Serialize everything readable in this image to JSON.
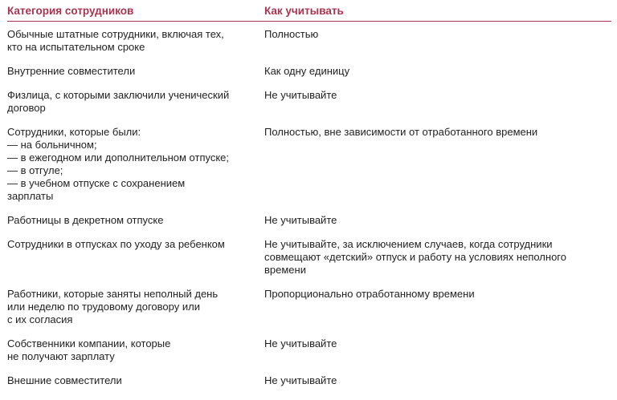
{
  "header": {
    "category": "Категория сотрудников",
    "how": "Как учитывать"
  },
  "rows": [
    {
      "category": "Обычные штатные сотрудники, включая тех,\nкто на испытательном сроке",
      "how": "Полностью"
    },
    {
      "category": "Внутренние совместители",
      "how": "Как одну единицу"
    },
    {
      "category": "Физлица, с которыми заключили ученический\nдоговор",
      "how": "Не учитывайте"
    },
    {
      "category": "Сотрудники, которые были:\n— на больничном;\n— в ежегодном или дополнительном отпуске;\n— в отгуле;\n— в учебном отпуске с сохранением\nзарплаты",
      "how": "Полностью, вне зависимости от отработанного времени"
    },
    {
      "category": "Работницы в декретном отпуске",
      "how": "Не учитывайте"
    },
    {
      "category": "Сотрудники в отпусках по уходу за ребенком",
      "how": "Не учитывайте, за исключением случаев, когда сотрудники\nсовмещают «детский» отпуск и работу на условиях неполного\nвремени"
    },
    {
      "category": "Работники, которые заняты неполный день\nили неделю по трудовому договору или\nс их согласия",
      "how": "Пропорционально отработанному времени"
    },
    {
      "category": "Собственники компании, которые\nне получают зарплату",
      "how": "Не учитывайте"
    },
    {
      "category": "Внешние совместители",
      "how": "Не учитывайте"
    }
  ],
  "colors": {
    "accent": "#a8344f",
    "text": "#222222"
  }
}
